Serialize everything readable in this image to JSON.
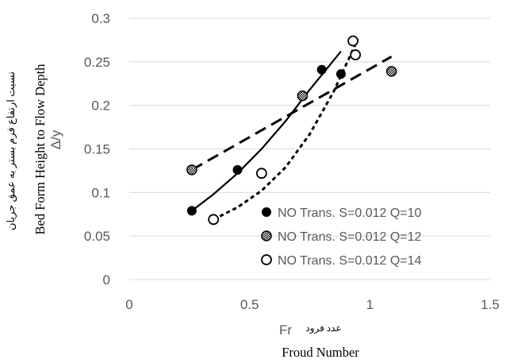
{
  "chart_data": {
    "type": "scatter",
    "xlabel": {
      "symbol": "Fr",
      "persian": "عدد فرود",
      "english": "Froud Number"
    },
    "ylabel": {
      "persian": "نسبت ارتفاع فرم بستر به عمق جریان",
      "english": "Bed Form Height to Flow Depth",
      "symbol": "Δ/y"
    },
    "xlim": [
      0,
      1.5
    ],
    "ylim": [
      0,
      0.3
    ],
    "x_ticks": [
      "0",
      "0.5",
      "1",
      "1.5"
    ],
    "y_ticks": [
      "0",
      "0.05",
      "0.1",
      "0.15",
      "0.2",
      "0.25",
      "0.3"
    ],
    "grid": "horizontal",
    "legend_position": "bottom-right",
    "series": [
      {
        "name": "NO Trans. S=0.012 Q=10",
        "marker": "filled-circle",
        "line": "solid",
        "color": "#000000",
        "x": [
          0.26,
          0.45,
          0.8,
          0.88
        ],
        "y": [
          0.079,
          0.126,
          0.241,
          0.236
        ],
        "trend": [
          [
            0.26,
            0.079
          ],
          [
            0.35,
            0.098
          ],
          [
            0.45,
            0.122
          ],
          [
            0.55,
            0.15
          ],
          [
            0.65,
            0.182
          ],
          [
            0.75,
            0.218
          ],
          [
            0.88,
            0.262
          ]
        ]
      },
      {
        "name": "NO Trans. S=0.012 Q=12",
        "marker": "hatched-circle",
        "line": "long-dash",
        "color": "#000000",
        "x": [
          0.26,
          0.72,
          1.09
        ],
        "y": [
          0.126,
          0.211,
          0.239
        ],
        "trend": [
          [
            0.26,
            0.126
          ],
          [
            1.09,
            0.256
          ]
        ]
      },
      {
        "name": "NO Trans. S=0.012 Q=14",
        "marker": "open-circle",
        "line": "short-dash",
        "color": "#000000",
        "x": [
          0.35,
          0.55,
          0.93,
          0.94
        ],
        "y": [
          0.069,
          0.122,
          0.274,
          0.258
        ],
        "trend": [
          [
            0.35,
            0.069
          ],
          [
            0.45,
            0.083
          ],
          [
            0.55,
            0.102
          ],
          [
            0.65,
            0.129
          ],
          [
            0.75,
            0.167
          ],
          [
            0.85,
            0.216
          ],
          [
            0.95,
            0.276
          ]
        ]
      }
    ]
  }
}
